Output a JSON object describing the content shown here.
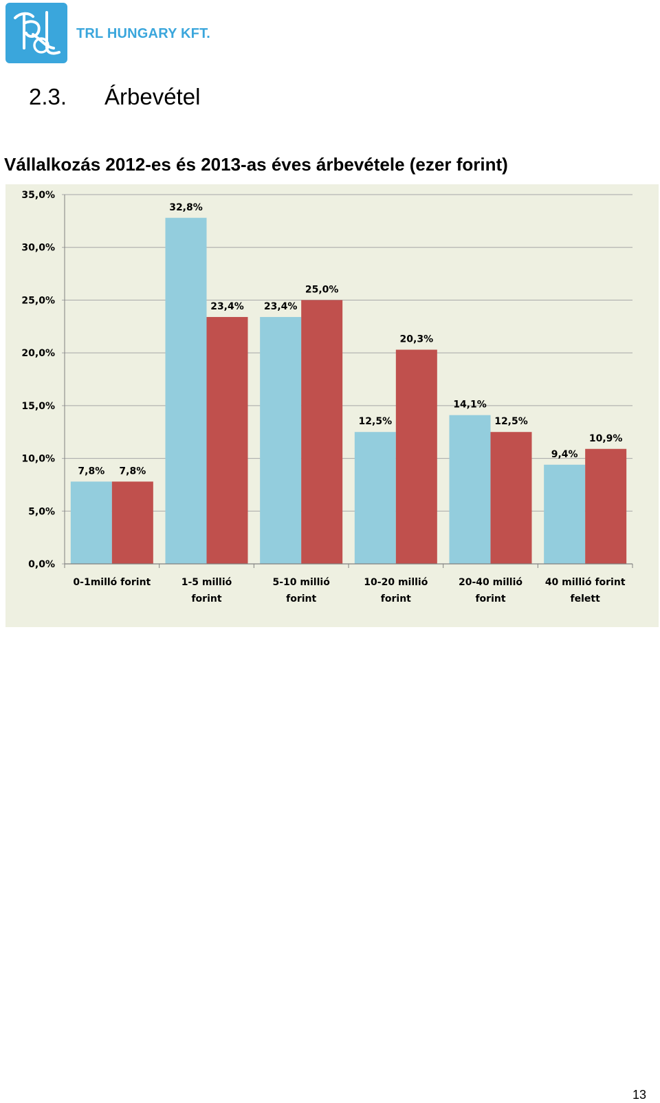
{
  "header": {
    "company_name": "TRL HUNGARY KFT.",
    "logo_text": "TRL"
  },
  "section": {
    "number": "2.3.",
    "title": "Árbevétel"
  },
  "subtitle": "Vállalkozás 2012-es és 2013-as éves árbevétele (ezer forint)",
  "chart_data": {
    "type": "bar",
    "categories": [
      [
        "0-1milló forint"
      ],
      [
        "1-5 millió",
        "forint"
      ],
      [
        "5-10 millió",
        "forint"
      ],
      [
        "10-20 millió",
        "forint"
      ],
      [
        "20-40 millió",
        "forint"
      ],
      [
        "40 millió forint",
        "felett"
      ]
    ],
    "series": [
      {
        "values": [
          7.8,
          32.8,
          23.4,
          12.5,
          14.1,
          9.4
        ],
        "labels": [
          "7,8%",
          "32,8%",
          "23,4%",
          "12,5%",
          "14,1%",
          "9,4%"
        ],
        "color": "#93cddd"
      },
      {
        "values": [
          7.8,
          23.4,
          25.0,
          20.3,
          12.5,
          10.9
        ],
        "labels": [
          "7,8%",
          "23,4%",
          "25,0%",
          "20,3%",
          "12,5%",
          "10,9%"
        ],
        "color": "#c0504d"
      }
    ],
    "ylim": [
      0,
      35
    ],
    "yticks": [
      0,
      5,
      10,
      15,
      20,
      25,
      30,
      35
    ],
    "ytick_labels": [
      "0,0%",
      "5,0%",
      "10,0%",
      "15,0%",
      "20,0%",
      "25,0%",
      "30,0%",
      "35,0%"
    ],
    "grid": true,
    "legend": "none",
    "background": "#eef0e1",
    "gridline_color": "#a6a6a6"
  },
  "footer": {
    "page_number": "13"
  }
}
